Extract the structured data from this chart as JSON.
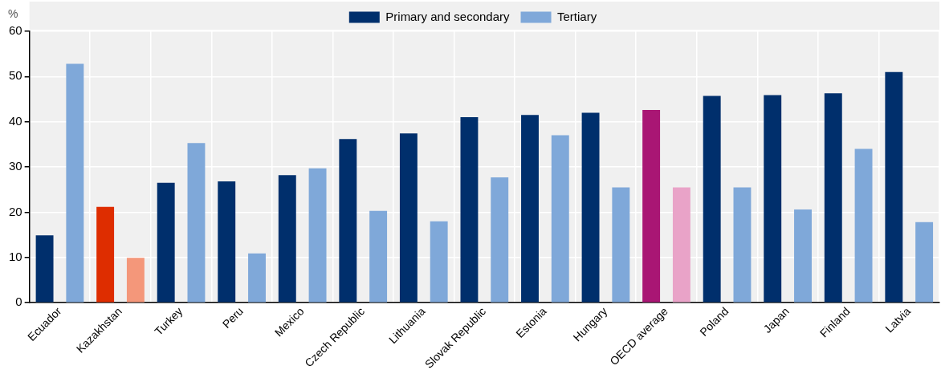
{
  "chart_data": {
    "type": "bar",
    "ylabel": "%",
    "categories": [
      "Ecuador",
      "Kazakhstan",
      "Turkey",
      "Peru",
      "Mexico",
      "Czech Republic",
      "Lithuania",
      "Slovak Republic",
      "Estonia",
      "Hungary",
      "OECD average",
      "Poland",
      "Japan",
      "Finland",
      "Latvia"
    ],
    "series": [
      {
        "name": "Primary and secondary",
        "color": "#002f6c",
        "colors": [
          "#002f6c",
          "#de2d00",
          "#002f6c",
          "#002f6c",
          "#002f6c",
          "#002f6c",
          "#002f6c",
          "#002f6c",
          "#002f6c",
          "#002f6c",
          "#a91674",
          "#002f6c",
          "#002f6c",
          "#002f6c",
          "#002f6c"
        ],
        "values": [
          14.9,
          21.2,
          26.5,
          26.8,
          28.2,
          36.2,
          37.4,
          41.0,
          41.5,
          42.0,
          42.6,
          45.7,
          45.9,
          46.3,
          51.0
        ]
      },
      {
        "name": "Tertiary",
        "color": "#7fa8d9",
        "colors": [
          "#7fa8d9",
          "#f4977a",
          "#7fa8d9",
          "#7fa8d9",
          "#7fa8d9",
          "#7fa8d9",
          "#7fa8d9",
          "#7fa8d9",
          "#7fa8d9",
          "#7fa8d9",
          "#e9a3c8",
          "#7fa8d9",
          "#7fa8d9",
          "#7fa8d9",
          "#7fa8d9"
        ],
        "values": [
          52.8,
          9.9,
          35.3,
          10.9,
          29.7,
          20.3,
          18.0,
          27.7,
          37.0,
          25.5,
          25.5,
          25.5,
          20.6,
          34.0,
          17.8
        ]
      }
    ],
    "ylim": [
      0,
      60
    ],
    "yticks": [
      0,
      10,
      20,
      30,
      40,
      50,
      60
    ],
    "grid": true,
    "legend": "top"
  }
}
